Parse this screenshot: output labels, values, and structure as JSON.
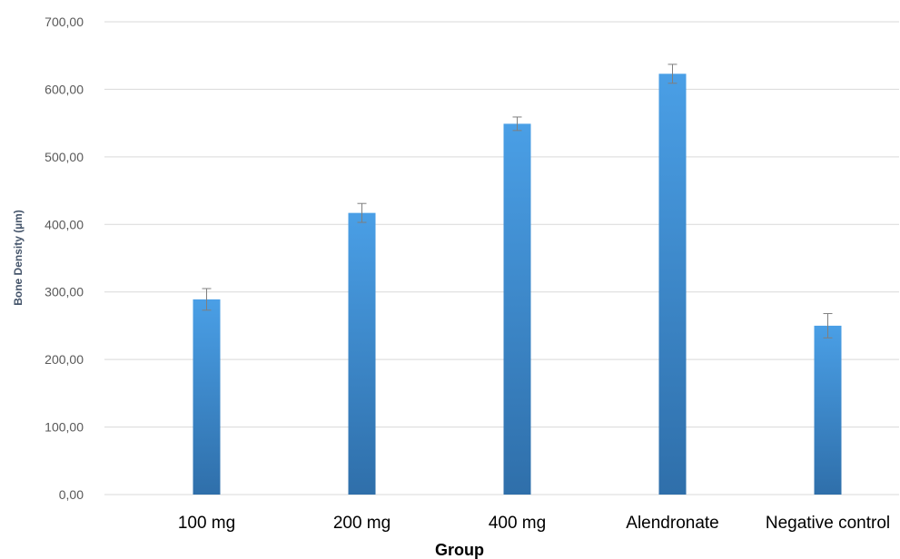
{
  "chart_data": {
    "type": "bar",
    "title": "",
    "xlabel": "Group",
    "ylabel": "Bone Density  (µm)",
    "categories": [
      "100 mg",
      "200 mg",
      "400 mg",
      "Alendronate",
      "Negative control"
    ],
    "values": [
      289,
      417,
      549,
      623,
      250
    ],
    "error": [
      16,
      14,
      10,
      14,
      18
    ],
    "ylim": [
      0,
      700
    ],
    "ytick_step": 100,
    "ytick_labels": [
      "0,00",
      "100,00",
      "200,00",
      "300,00",
      "400,00",
      "500,00",
      "600,00",
      "700,00"
    ],
    "grid": true,
    "legend": "none",
    "colors": {
      "bar_top": "#4a9fe6",
      "bar_bottom": "#2f6faa",
      "gridline": "#d9d9d9",
      "error_bar": "#7f7f7f",
      "axis_line": "#d9d9d9"
    }
  }
}
